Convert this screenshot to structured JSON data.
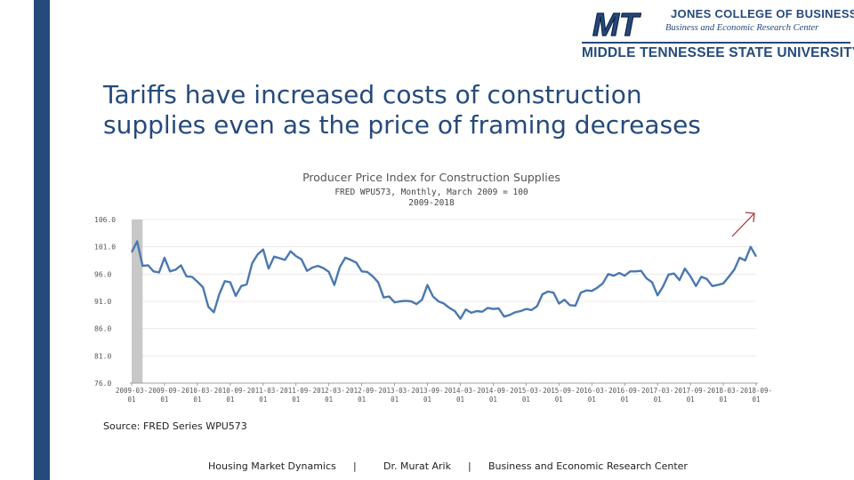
{
  "slide": {
    "title_line1": "Tariffs have increased costs of construction",
    "title_line2": "supplies even as the price of framing decreases",
    "source": "Source: FRED Series WPU573",
    "accent_color": "#254a7c",
    "line_color": "#4a78b0"
  },
  "logo": {
    "mark": "MT",
    "college": "JONES COLLEGE OF BUSINESS",
    "center": "Business and Economic Research Center",
    "university": "MIDDLE TENNESSEE STATE UNIVERSITY"
  },
  "footer": {
    "course": "Housing Market Dynamics",
    "sep1": "|",
    "author": "Dr. Murat Arik",
    "sep2": "|",
    "org": "Business and Economic Research Center"
  },
  "chart_data": {
    "type": "line",
    "title": "Producer Price Index for Construction Supplies",
    "subtitle1": "FRED WPU573, Monthly, March 2009 = 100",
    "subtitle2": "2009-2018",
    "ylim": [
      76.0,
      106.0
    ],
    "yticks": [
      "106.0",
      "101.0",
      "96.0",
      "91.0",
      "86.0",
      "81.0",
      "76.0"
    ],
    "xticks": [
      [
        "2009-03-",
        "01"
      ],
      [
        "2009-09-",
        "01"
      ],
      [
        "2010-03-",
        "01"
      ],
      [
        "2010-09-",
        "01"
      ],
      [
        "2011-03-",
        "01"
      ],
      [
        "2011-09-",
        "01"
      ],
      [
        "2012-03-",
        "01"
      ],
      [
        "2012-09-",
        "01"
      ],
      [
        "2013-03-",
        "01"
      ],
      [
        "2013-09-",
        "01"
      ],
      [
        "2014-03-",
        "01"
      ],
      [
        "2014-09-",
        "01"
      ],
      [
        "2015-03-",
        "01"
      ],
      [
        "2015-09-",
        "01"
      ],
      [
        "2016-03-",
        "01"
      ],
      [
        "2016-09-",
        "01"
      ],
      [
        "2017-03-",
        "01"
      ],
      [
        "2017-09-",
        "01"
      ],
      [
        "2018-03-",
        "01"
      ],
      [
        "2018-09-",
        "01"
      ]
    ],
    "shaded_region": [
      0,
      2
    ],
    "trend_arrow": "up",
    "series": [
      {
        "name": "WPU573",
        "values": [
          100.0,
          102.0,
          97.5,
          97.6,
          96.5,
          96.3,
          99.0,
          96.5,
          96.8,
          97.6,
          95.6,
          95.5,
          94.6,
          93.6,
          90.0,
          89.0,
          92.3,
          94.7,
          94.5,
          92.0,
          93.8,
          94.1,
          98.0,
          99.6,
          100.5,
          97.0,
          99.2,
          98.9,
          98.6,
          100.2,
          99.3,
          98.7,
          96.6,
          97.2,
          97.5,
          97.1,
          96.4,
          94.0,
          97.3,
          99.0,
          98.6,
          98.1,
          96.5,
          96.4,
          95.6,
          94.5,
          91.7,
          91.9,
          90.8,
          91.0,
          91.1,
          91.0,
          90.5,
          91.3,
          94.0,
          91.9,
          91.0,
          90.6,
          89.8,
          89.2,
          87.8,
          89.5,
          88.9,
          89.2,
          89.1,
          89.8,
          89.6,
          89.7,
          88.2,
          88.5,
          89.0,
          89.2,
          89.6,
          89.4,
          90.1,
          92.3,
          92.8,
          92.6,
          90.6,
          91.3,
          90.3,
          90.2,
          92.6,
          93.0,
          92.9,
          93.5,
          94.3,
          96.0,
          95.7,
          96.2,
          95.7,
          96.5,
          96.5,
          96.6,
          95.2,
          94.5,
          92.1,
          93.7,
          95.9,
          96.1,
          94.9,
          97.0,
          95.6,
          93.8,
          95.5,
          95.1,
          93.8,
          94.0,
          94.3,
          95.5,
          96.8,
          99.0,
          98.5,
          101.0,
          99.2
        ]
      }
    ]
  }
}
